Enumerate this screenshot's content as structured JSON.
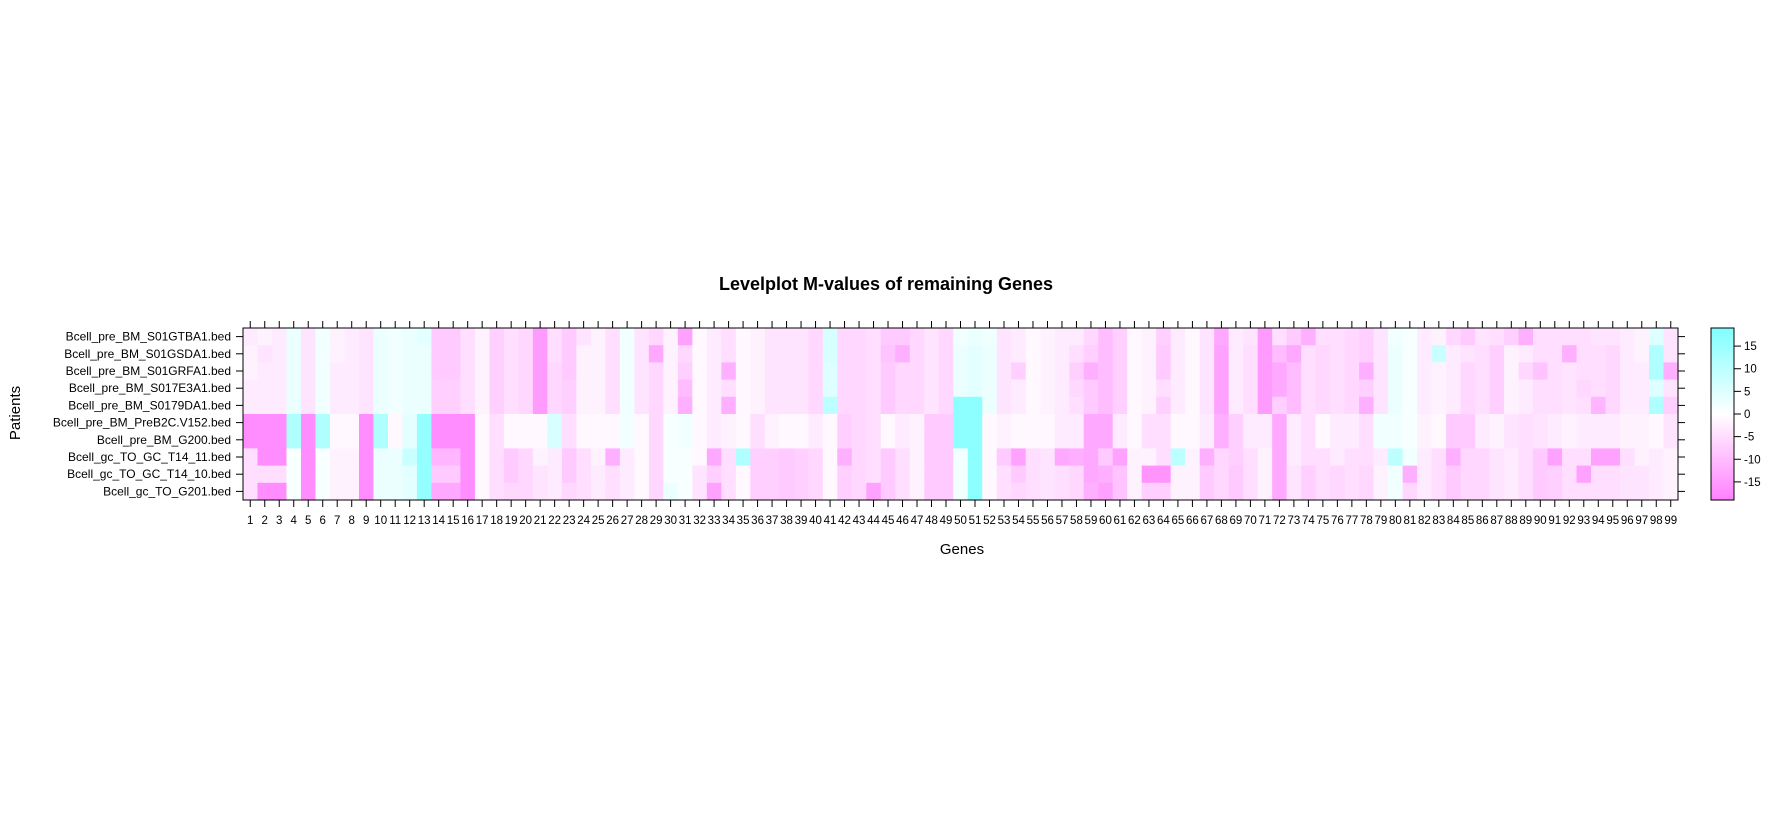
{
  "chart_data": {
    "type": "heatmap",
    "title": "Levelplot M-values of remaining Genes",
    "xlabel": "Genes",
    "ylabel": "Patients",
    "x": [
      1,
      2,
      3,
      4,
      5,
      6,
      7,
      8,
      9,
      10,
      11,
      12,
      13,
      14,
      15,
      16,
      17,
      18,
      19,
      20,
      21,
      22,
      23,
      24,
      25,
      26,
      27,
      28,
      29,
      30,
      31,
      32,
      33,
      34,
      35,
      36,
      37,
      38,
      39,
      40,
      41,
      42,
      43,
      44,
      45,
      46,
      47,
      48,
      49,
      50,
      51,
      52,
      53,
      54,
      55,
      56,
      57,
      58,
      59,
      60,
      61,
      62,
      63,
      64,
      65,
      66,
      67,
      68,
      69,
      70,
      71,
      72,
      73,
      74,
      75,
      76,
      77,
      78,
      79,
      80,
      81,
      82,
      83,
      84,
      85,
      86,
      87,
      88,
      89,
      90,
      91,
      92,
      93,
      94,
      95,
      96,
      97,
      98,
      99
    ],
    "y": [
      "Bcell_pre_BM_S01GTBA1.bed",
      "Bcell_pre_BM_S01GSDA1.bed",
      "Bcell_pre_BM_S01GRFA1.bed",
      "Bcell_pre_BM_S017E3A1.bed",
      "Bcell_pre_BM_S0179DA1.bed",
      "Bcell_pre_BM_PreB2C.V152.bed",
      "Bcell_pre_BM_G200.bed",
      "Bcell_gc_TO_GC_T14_11.bed",
      "Bcell_gc_TO_GC_T14_10.bed",
      "Bcell_gc_TO_G201.bed"
    ],
    "colorbar": {
      "range": [
        -19,
        19
      ],
      "ticks": [
        -15,
        -10,
        -5,
        0,
        5,
        10,
        15
      ],
      "low_color": "#ff80ff",
      "mid_color": "#ffffff",
      "high_color": "#80ffff"
    },
    "values": [
      [
        -3,
        -2,
        -3,
        3,
        -4,
        2,
        -2,
        -3,
        -4,
        3,
        2,
        3,
        4,
        -8,
        -8,
        -5,
        -2,
        -7,
        -5,
        -6,
        -15,
        -5,
        -8,
        -4,
        -2,
        -5,
        2,
        -4,
        -6,
        -2,
        -14,
        -1,
        -3,
        -5,
        -1,
        -2,
        -4,
        -4,
        -4,
        -6,
        6,
        -6,
        -6,
        -5,
        -8,
        -8,
        -6,
        -4,
        -6,
        2,
        3,
        2,
        -4,
        -3,
        -1,
        -2,
        -3,
        -3,
        -6,
        -10,
        -7,
        -1,
        -2,
        -7,
        -3,
        -1,
        -4,
        -13,
        -3,
        -4,
        -15,
        -5,
        -8,
        -12,
        -5,
        -5,
        -6,
        -7,
        -4,
        2,
        1,
        -3,
        -2,
        -6,
        -8,
        -4,
        -5,
        -7,
        -12,
        -5,
        -5,
        -5,
        -5,
        -4,
        -4,
        -3,
        -2,
        5,
        -4
      ],
      [
        -2,
        -4,
        -3,
        3,
        -4,
        2,
        -2,
        -3,
        -4,
        3,
        2,
        3,
        3,
        -8,
        -8,
        -5,
        -2,
        -7,
        -5,
        -6,
        -15,
        -5,
        -8,
        -2,
        -2,
        -5,
        2,
        -4,
        -13,
        -2,
        -6,
        -1,
        -3,
        -5,
        -1,
        -2,
        -4,
        -4,
        -4,
        -6,
        6,
        -6,
        -6,
        -5,
        -9,
        -12,
        -6,
        -4,
        -6,
        3,
        4,
        3,
        -4,
        -3,
        -1,
        -2,
        -3,
        -5,
        -7,
        -10,
        -7,
        -1,
        -2,
        -8,
        -3,
        -1,
        -4,
        -14,
        -3,
        -5,
        -15,
        -10,
        -13,
        -5,
        -6,
        -5,
        -6,
        -7,
        -4,
        3,
        1,
        -3,
        8,
        -3,
        -4,
        -5,
        -7,
        -2,
        -3,
        -5,
        -5,
        -12,
        -5,
        -5,
        -6,
        -3,
        -2,
        12,
        -4
      ],
      [
        -2,
        -3,
        -3,
        3,
        -4,
        2,
        -3,
        -3,
        -4,
        3,
        2,
        3,
        3,
        -8,
        -8,
        -5,
        -2,
        -7,
        -5,
        -6,
        -15,
        -6,
        -8,
        -2,
        -2,
        -5,
        2,
        -4,
        -6,
        -2,
        -7,
        -1,
        -3,
        -12,
        -1,
        -2,
        -4,
        -4,
        -4,
        -6,
        5,
        -6,
        -6,
        -5,
        -8,
        -6,
        -6,
        -4,
        -6,
        3,
        4,
        3,
        -4,
        -7,
        -1,
        -2,
        -3,
        -7,
        -12,
        -10,
        -7,
        -1,
        -2,
        -8,
        -3,
        -1,
        -4,
        -14,
        -3,
        -5,
        -15,
        -13,
        -10,
        -5,
        -6,
        -5,
        -6,
        -12,
        -4,
        3,
        1,
        -3,
        -2,
        -3,
        -6,
        -5,
        -7,
        -2,
        -6,
        -9,
        -5,
        -4,
        -5,
        -5,
        -6,
        -3,
        -3,
        12,
        -12
      ],
      [
        -3,
        -3,
        -3,
        3,
        -4,
        2,
        -3,
        -3,
        -4,
        3,
        2,
        3,
        3,
        -7,
        -7,
        -5,
        -2,
        -7,
        -5,
        -6,
        -15,
        -6,
        -7,
        -2,
        -2,
        -5,
        2,
        -4,
        -6,
        -2,
        -10,
        -1,
        -3,
        -5,
        -1,
        -2,
        -4,
        -4,
        -4,
        -6,
        5,
        -6,
        -6,
        -5,
        -8,
        -6,
        -6,
        -4,
        -6,
        3,
        4,
        3,
        -4,
        -3,
        -1,
        -2,
        -3,
        -6,
        -8,
        -10,
        -7,
        -1,
        -2,
        -5,
        -3,
        -1,
        -4,
        -14,
        -3,
        -5,
        -15,
        -13,
        -10,
        -5,
        -6,
        -5,
        -6,
        -7,
        -4,
        3,
        1,
        -3,
        -2,
        -3,
        -6,
        -5,
        -7,
        -2,
        -3,
        -5,
        -5,
        -4,
        -6,
        -5,
        -6,
        -3,
        -3,
        5,
        -4
      ],
      [
        -3,
        -3,
        -3,
        3,
        -4,
        2,
        -3,
        -3,
        -4,
        3,
        2,
        3,
        3,
        -7,
        -7,
        -5,
        -2,
        -7,
        -5,
        -6,
        -15,
        -6,
        -7,
        -2,
        -2,
        -5,
        2,
        -4,
        -6,
        -2,
        -12,
        -1,
        -3,
        -12,
        -1,
        -2,
        -4,
        -4,
        -4,
        -6,
        10,
        -6,
        -6,
        -5,
        -8,
        -6,
        -6,
        -4,
        -6,
        17,
        17,
        3,
        -4,
        -3,
        -1,
        -2,
        -3,
        -5,
        -8,
        -10,
        -7,
        -1,
        -2,
        -7,
        -3,
        -1,
        -4,
        -14,
        -3,
        -5,
        -15,
        -7,
        -10,
        -5,
        -6,
        -5,
        -6,
        -12,
        -4,
        3,
        1,
        -3,
        -2,
        -3,
        -6,
        -5,
        -7,
        -2,
        -3,
        -5,
        -5,
        -4,
        -5,
        -11,
        -6,
        -3,
        -3,
        12,
        -7
      ],
      [
        -17,
        -17,
        -17,
        12,
        -17,
        12,
        -1,
        -1,
        -17,
        12,
        -1,
        4,
        16,
        -17,
        -17,
        -17,
        -1,
        -5,
        -1,
        -1,
        -1,
        6,
        -5,
        -1,
        -1,
        -1,
        2,
        -1,
        -6,
        1,
        2,
        -1,
        -3,
        -2,
        -1,
        -5,
        -2,
        -1,
        -1,
        -3,
        -1,
        -7,
        -6,
        -5,
        -1,
        -3,
        -2,
        -8,
        -8,
        17,
        17,
        -1,
        -2,
        -1,
        -1,
        -1,
        -3,
        -3,
        -13,
        -13,
        -3,
        -1,
        -5,
        -5,
        -1,
        -1,
        -3,
        -12,
        -7,
        -3,
        -3,
        -13,
        -3,
        -5,
        -1,
        -3,
        -3,
        -5,
        2,
        2,
        1,
        -2,
        -1,
        -8,
        -8,
        -3,
        -2,
        -4,
        -5,
        -4,
        -3,
        -2,
        -3,
        -3,
        -3,
        -2,
        -2,
        -1,
        -4
      ],
      [
        -17,
        -17,
        -17,
        12,
        -17,
        12,
        -1,
        -1,
        -17,
        12,
        -1,
        4,
        16,
        -17,
        -17,
        -17,
        -1,
        -5,
        -1,
        -1,
        -1,
        6,
        -5,
        -1,
        -1,
        -1,
        2,
        -1,
        -6,
        1,
        2,
        -1,
        -3,
        -2,
        -1,
        -5,
        -2,
        -1,
        -1,
        -3,
        -1,
        -7,
        -6,
        -5,
        -1,
        -3,
        -2,
        -8,
        -8,
        17,
        17,
        -1,
        -2,
        -1,
        -1,
        -1,
        -3,
        -3,
        -13,
        -13,
        -3,
        -1,
        -5,
        -5,
        -1,
        -1,
        -3,
        -12,
        -7,
        -3,
        -3,
        -13,
        -3,
        -5,
        -1,
        -3,
        -3,
        -5,
        2,
        2,
        1,
        -2,
        -1,
        -8,
        -8,
        -3,
        -2,
        -4,
        -5,
        -4,
        -3,
        -2,
        -3,
        -3,
        -3,
        -2,
        -2,
        -1,
        -4
      ],
      [
        -5,
        -17,
        -17,
        1,
        -17,
        1,
        -2,
        -2,
        -17,
        3,
        3,
        8,
        16,
        -11,
        -11,
        -17,
        -1,
        -5,
        -8,
        -6,
        -2,
        -3,
        -8,
        -5,
        -2,
        -12,
        -3,
        -1,
        -6,
        1,
        1,
        -1,
        -13,
        -5,
        12,
        -7,
        -7,
        -8,
        -7,
        -6,
        -1,
        -12,
        -6,
        -5,
        -8,
        -5,
        -2,
        -8,
        -8,
        2,
        17,
        -1,
        -8,
        -14,
        -5,
        -4,
        -13,
        -12,
        -13,
        -8,
        -14,
        -2,
        -2,
        -5,
        10,
        -2,
        -12,
        -6,
        -7,
        -5,
        -2,
        -13,
        -3,
        -5,
        -5,
        -3,
        -5,
        -5,
        -3,
        10,
        2,
        -3,
        -5,
        -12,
        -6,
        -6,
        -4,
        -3,
        -5,
        -8,
        -14,
        -5,
        -5,
        -14,
        -14,
        -5,
        -2,
        -3,
        -2
      ],
      [
        -5,
        -5,
        -5,
        1,
        -17,
        1,
        -2,
        -2,
        -17,
        3,
        3,
        4,
        16,
        -8,
        -8,
        -17,
        -1,
        -5,
        -8,
        -6,
        -4,
        -3,
        -8,
        -5,
        -3,
        -5,
        -3,
        -1,
        -6,
        1,
        1,
        -4,
        -7,
        -5,
        -1,
        -7,
        -7,
        -8,
        -7,
        -6,
        -1,
        -7,
        -6,
        -5,
        -8,
        -5,
        -2,
        -8,
        -8,
        2,
        17,
        -1,
        -5,
        -8,
        -5,
        -4,
        -5,
        -6,
        -13,
        -12,
        -9,
        -2,
        -16,
        -16,
        -2,
        -2,
        -8,
        -6,
        -8,
        -5,
        -2,
        -13,
        -4,
        -7,
        -5,
        -6,
        -5,
        -6,
        -2,
        2,
        -12,
        -3,
        -5,
        -8,
        -6,
        -6,
        -4,
        -3,
        -5,
        -8,
        -7,
        -5,
        -14,
        -5,
        -5,
        -4,
        -4,
        -3,
        -2
      ],
      [
        -5,
        -17,
        -17,
        1,
        -17,
        1,
        -2,
        -2,
        -17,
        3,
        3,
        4,
        16,
        -13,
        -13,
        -17,
        -1,
        -5,
        -6,
        -6,
        -4,
        -3,
        -6,
        -5,
        -3,
        -5,
        -3,
        -1,
        -6,
        3,
        1,
        -4,
        -14,
        -5,
        -1,
        -7,
        -7,
        -8,
        -7,
        -6,
        -1,
        -7,
        -6,
        -14,
        -8,
        -5,
        -2,
        -8,
        -8,
        2,
        17,
        -1,
        -5,
        -6,
        -5,
        -4,
        -5,
        -6,
        -12,
        -14,
        -9,
        -2,
        -7,
        -7,
        -2,
        -2,
        -8,
        -6,
        -8,
        -5,
        -2,
        -13,
        -4,
        -7,
        -5,
        -6,
        -5,
        -6,
        -2,
        2,
        -6,
        -3,
        -5,
        -8,
        -6,
        -6,
        -4,
        -3,
        -5,
        -8,
        -7,
        -5,
        -5,
        -5,
        -5,
        -4,
        -4,
        -3,
        -2
      ]
    ]
  }
}
